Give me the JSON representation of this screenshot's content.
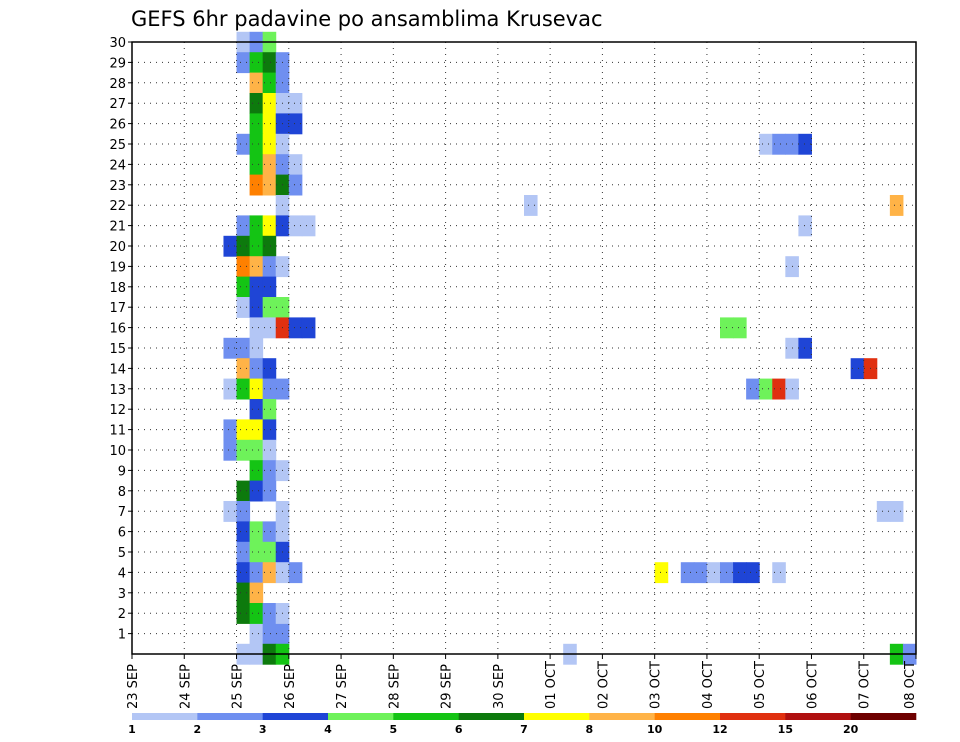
{
  "chart_data": {
    "type": "heatmap",
    "title": "GEFS 6hr padavine po ansamblima Krusevac",
    "x_labels": [
      "23 SEP",
      "24 SEP",
      "25 SEP",
      "26 SEP",
      "27 SEP",
      "28 SEP",
      "29 SEP",
      "30 SEP",
      "01 OCT",
      "02 OCT",
      "03 OCT",
      "04 OCT",
      "05 OCT",
      "06 OCT",
      "07 OCT",
      "08 OCT"
    ],
    "y_labels": [
      "1",
      "2",
      "3",
      "4",
      "5",
      "6",
      "7",
      "8",
      "9",
      "10",
      "11",
      "12",
      "13",
      "14",
      "15",
      "16",
      "17",
      "18",
      "19",
      "20",
      "21",
      "22",
      "23",
      "24",
      "25",
      "26",
      "27",
      "28",
      "29",
      "30"
    ],
    "grid": true,
    "scale": {
      "colors": [
        "#b3c6f5",
        "#6f8ff0",
        "#1f45d6",
        "#6ef25a",
        "#14c414",
        "#0d7a0d",
        "#ffff00",
        "#ffb347",
        "#ff8000",
        "#e03010",
        "#b01010",
        "#6e0000"
      ],
      "labels": [
        "1",
        "2",
        "3",
        "4",
        "5",
        "6",
        "7",
        "8",
        "10",
        "12",
        "15",
        "20"
      ]
    },
    "cells": [
      [
        2.25,
        1,
        0
      ],
      [
        2.5,
        1,
        1
      ],
      [
        2.75,
        1,
        1
      ],
      [
        2.0,
        0,
        0
      ],
      [
        2.25,
        0,
        0
      ],
      [
        2.5,
        0,
        5
      ],
      [
        2.75,
        0,
        4
      ],
      [
        2.0,
        30,
        0
      ],
      [
        2.25,
        30,
        1
      ],
      [
        2.5,
        30,
        3
      ],
      [
        2.0,
        29,
        1
      ],
      [
        2.25,
        29,
        4
      ],
      [
        2.5,
        29,
        5
      ],
      [
        2.75,
        29,
        1
      ],
      [
        2.25,
        28,
        7
      ],
      [
        2.5,
        28,
        4
      ],
      [
        2.75,
        28,
        1
      ],
      [
        2.25,
        27,
        5
      ],
      [
        2.5,
        27,
        6
      ],
      [
        2.75,
        27,
        0
      ],
      [
        3.0,
        27,
        0
      ],
      [
        2.25,
        26,
        4
      ],
      [
        2.5,
        26,
        6
      ],
      [
        2.75,
        26,
        2
      ],
      [
        3.0,
        26,
        2
      ],
      [
        2.0,
        25,
        1
      ],
      [
        2.25,
        25,
        4
      ],
      [
        2.5,
        25,
        6
      ],
      [
        2.75,
        25,
        0
      ],
      [
        2.25,
        24,
        4
      ],
      [
        2.5,
        24,
        7
      ],
      [
        2.75,
        24,
        1
      ],
      [
        3.0,
        24,
        0
      ],
      [
        2.25,
        23,
        8
      ],
      [
        2.5,
        23,
        7
      ],
      [
        2.75,
        23,
        5
      ],
      [
        3.0,
        23,
        1
      ],
      [
        2.75,
        22,
        0
      ],
      [
        2.0,
        21,
        1
      ],
      [
        2.25,
        21,
        4
      ],
      [
        2.5,
        21,
        6
      ],
      [
        2.75,
        21,
        2
      ],
      [
        3.0,
        21,
        0
      ],
      [
        3.25,
        21,
        0
      ],
      [
        1.75,
        20,
        2
      ],
      [
        2.0,
        20,
        5
      ],
      [
        2.25,
        20,
        4
      ],
      [
        2.5,
        20,
        5
      ],
      [
        2.0,
        19,
        8
      ],
      [
        2.25,
        19,
        7
      ],
      [
        2.5,
        19,
        1
      ],
      [
        2.75,
        19,
        0
      ],
      [
        2.0,
        18,
        4
      ],
      [
        2.25,
        18,
        2
      ],
      [
        2.5,
        18,
        2
      ],
      [
        2.0,
        17,
        0
      ],
      [
        2.25,
        17,
        2
      ],
      [
        2.5,
        17,
        3
      ],
      [
        2.75,
        17,
        3
      ],
      [
        2.25,
        16,
        0
      ],
      [
        2.5,
        16,
        0
      ],
      [
        2.75,
        16,
        9
      ],
      [
        3.0,
        16,
        2
      ],
      [
        3.25,
        16,
        2
      ],
      [
        1.75,
        15,
        1
      ],
      [
        2.0,
        15,
        1
      ],
      [
        2.25,
        15,
        0
      ],
      [
        2.0,
        14,
        7
      ],
      [
        2.25,
        14,
        1
      ],
      [
        2.5,
        14,
        2
      ],
      [
        1.75,
        13,
        0
      ],
      [
        2.0,
        13,
        4
      ],
      [
        2.25,
        13,
        6
      ],
      [
        2.5,
        13,
        1
      ],
      [
        2.75,
        13,
        1
      ],
      [
        2.25,
        12,
        2
      ],
      [
        2.5,
        12,
        3
      ],
      [
        1.75,
        11,
        1
      ],
      [
        2.0,
        11,
        6
      ],
      [
        2.25,
        11,
        6
      ],
      [
        2.5,
        11,
        2
      ],
      [
        1.75,
        10,
        1
      ],
      [
        2.0,
        10,
        3
      ],
      [
        2.25,
        10,
        3
      ],
      [
        2.5,
        10,
        0
      ],
      [
        2.25,
        9,
        4
      ],
      [
        2.5,
        9,
        1
      ],
      [
        2.75,
        9,
        0
      ],
      [
        2.0,
        8,
        5
      ],
      [
        2.25,
        8,
        2
      ],
      [
        2.5,
        8,
        1
      ],
      [
        1.75,
        7,
        0
      ],
      [
        2.0,
        7,
        1
      ],
      [
        2.75,
        7,
        0
      ],
      [
        2.0,
        6,
        2
      ],
      [
        2.25,
        6,
        3
      ],
      [
        2.5,
        6,
        1
      ],
      [
        2.75,
        6,
        0
      ],
      [
        2.0,
        5,
        1
      ],
      [
        2.25,
        5,
        3
      ],
      [
        2.5,
        5,
        3
      ],
      [
        2.75,
        5,
        2
      ],
      [
        2.0,
        4,
        2
      ],
      [
        2.25,
        4,
        1
      ],
      [
        2.5,
        4,
        7
      ],
      [
        2.75,
        4,
        0
      ],
      [
        3.0,
        4,
        1
      ],
      [
        2.0,
        3,
        5
      ],
      [
        2.25,
        3,
        7
      ],
      [
        2.0,
        2,
        5
      ],
      [
        2.25,
        2,
        4
      ],
      [
        2.5,
        2,
        1
      ],
      [
        2.75,
        2,
        0
      ],
      [
        8.25,
        0,
        0
      ],
      [
        7.5,
        22,
        0
      ],
      [
        10.0,
        4,
        6
      ],
      [
        10.5,
        4,
        1
      ],
      [
        10.75,
        4,
        1
      ],
      [
        11.0,
        4,
        0
      ],
      [
        11.25,
        4,
        1
      ],
      [
        11.5,
        4,
        2
      ],
      [
        11.75,
        4,
        2
      ],
      [
        12.25,
        4,
        0
      ],
      [
        11.75,
        13,
        1
      ],
      [
        12.0,
        13,
        3
      ],
      [
        12.25,
        13,
        9
      ],
      [
        12.5,
        13,
        0
      ],
      [
        13.75,
        14,
        2
      ],
      [
        14.0,
        14,
        9
      ],
      [
        12.5,
        15,
        0
      ],
      [
        12.75,
        15,
        2
      ],
      [
        11.25,
        16,
        3
      ],
      [
        11.5,
        16,
        3
      ],
      [
        12.5,
        19,
        0
      ],
      [
        12.75,
        21,
        0
      ],
      [
        12.0,
        25,
        0
      ],
      [
        12.25,
        25,
        1
      ],
      [
        12.5,
        25,
        1
      ],
      [
        12.75,
        25,
        2
      ],
      [
        14.25,
        7,
        0
      ],
      [
        14.5,
        7,
        0
      ],
      [
        14.5,
        22,
        7
      ],
      [
        14.5,
        0,
        4
      ],
      [
        14.75,
        0,
        1
      ]
    ]
  }
}
